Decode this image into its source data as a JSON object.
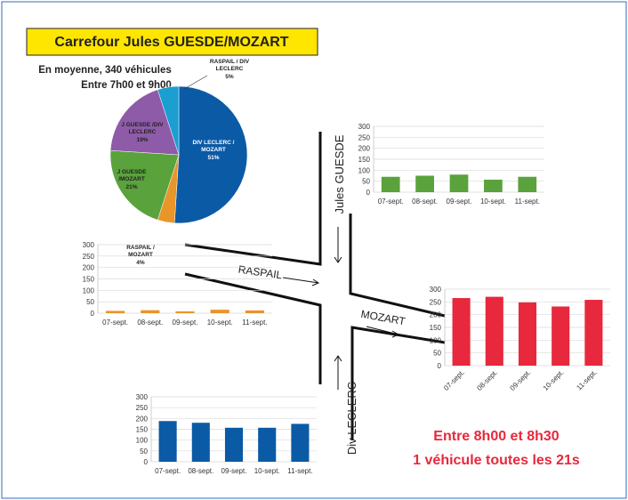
{
  "header": {
    "title": "Carrefour Jules GUESDE/MOZART",
    "lines": [
      "En moyenne, 340 véhicules",
      "Entre 7h00 et 9h00"
    ]
  },
  "streets": [
    "Jules GUESDE",
    "RASPAIL",
    "MOZART",
    "Div LECLERC"
  ],
  "note": [
    "Entre 8h00 et 8h30",
    "1 véhicule toutes les 21s"
  ],
  "chart_data": [
    {
      "type": "pie",
      "categories": [
        "DIV LECLERC / MOZART",
        "RASPAIL / MOZART",
        "J GUESDE /MOZART",
        "J GUESDE /DIV LECLERC",
        "RASPAIL / DIV LECLERC"
      ],
      "values": [
        51,
        4,
        21,
        19,
        5
      ],
      "value_labels": [
        "51%",
        "4%",
        "21%",
        "19%",
        "5%"
      ],
      "colors": [
        "#0b5aa6",
        "#e8952a",
        "#5aa23c",
        "#8e5ba8",
        "#1a9fd0"
      ]
    },
    {
      "type": "bar",
      "categories": [
        "07-sept.",
        "08-sept.",
        "09-sept.",
        "10-sept.",
        "11-sept."
      ],
      "values": [
        70,
        75,
        80,
        57,
        70
      ],
      "color": "#5aa23c",
      "ylim": [
        0,
        300
      ],
      "yticks": [
        0,
        50,
        100,
        150,
        200,
        250,
        300
      ],
      "grid": true
    },
    {
      "type": "bar",
      "categories": [
        "07-sept.",
        "08-sept.",
        "09-sept.",
        "10-sept.",
        "11-sept."
      ],
      "values": [
        10,
        13,
        8,
        15,
        12
      ],
      "color": "#e8952a",
      "ylim": [
        0,
        300
      ],
      "yticks": [
        0,
        50,
        100,
        150,
        200,
        250,
        300
      ],
      "grid": true
    },
    {
      "type": "bar",
      "categories": [
        "07-sept.",
        "08-sept.",
        "09-sept.",
        "10-sept.",
        "11-sept."
      ],
      "values": [
        265,
        270,
        248,
        232,
        258
      ],
      "color": "#e8283c",
      "ylim": [
        0,
        300
      ],
      "yticks": [
        0,
        50,
        100,
        150,
        200,
        250,
        300
      ],
      "grid": true
    },
    {
      "type": "bar",
      "categories": [
        "07-sept.",
        "08-sept.",
        "09-sept.",
        "10-sept.",
        "11-sept."
      ],
      "values": [
        188,
        180,
        157,
        157,
        175
      ],
      "color": "#0b5aa6",
      "ylim": [
        0,
        300
      ],
      "yticks": [
        0,
        50,
        100,
        150,
        200,
        250,
        300
      ],
      "grid": true
    }
  ]
}
